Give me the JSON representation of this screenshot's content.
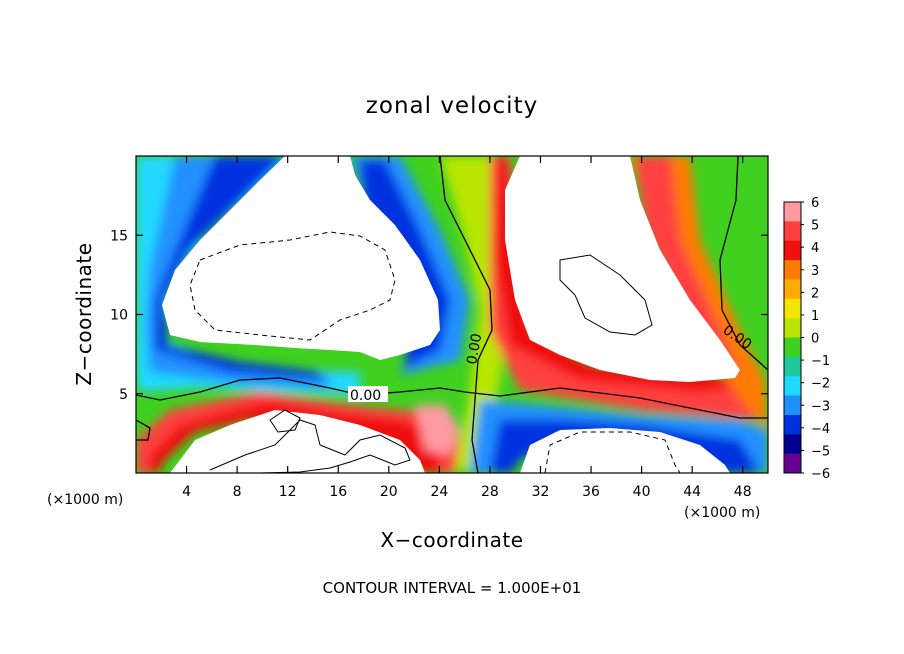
{
  "chart_data": {
    "type": "heatmap",
    "title": "zonal velocity",
    "xlabel": "X−coordinate",
    "ylabel": "Z−coordinate",
    "x_unit_label": "(×1000 m)",
    "y_unit_label": "(×1000 m)",
    "xlim": [
      0,
      50
    ],
    "ylim": [
      0,
      20
    ],
    "x_ticks": [
      4,
      8,
      12,
      16,
      20,
      24,
      28,
      32,
      36,
      40,
      44,
      48
    ],
    "y_ticks": [
      5,
      10,
      15
    ],
    "colorbar": {
      "min": -6,
      "max": 6,
      "ticks": [
        "6",
        "5",
        "4",
        "3",
        "2",
        "1",
        "0",
        "−1",
        "−2",
        "−3",
        "−4",
        "−5",
        "−6"
      ],
      "palette": [
        "#ff9aa2",
        "#ff4040",
        "#f01010",
        "#ff7a00",
        "#ffaa00",
        "#f5e600",
        "#b8e600",
        "#40d020",
        "#20c8a0",
        "#20d8ff",
        "#2090ff",
        "#0030e0",
        "#000090",
        "#6a0090"
      ]
    },
    "contour_labels": [
      "0.00",
      "0.00",
      "0.00"
    ],
    "grid": false
  },
  "footer": {
    "contour_interval": "CONTOUR INTERVAL = 1.000E+01"
  }
}
